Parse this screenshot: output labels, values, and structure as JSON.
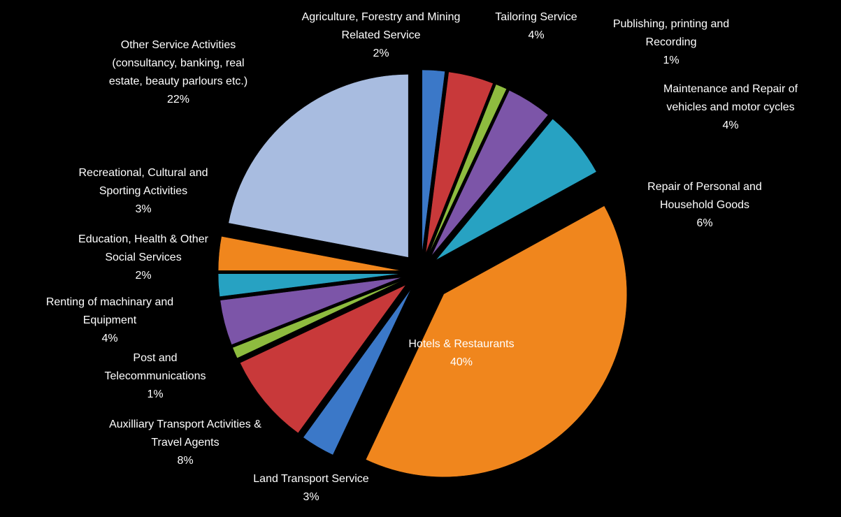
{
  "chart_data": {
    "type": "pie",
    "categories": [
      "Agriculture,  Forestry and Mining Related Service",
      "Tailoring Service",
      "Publishing, printing and Recording",
      "Maintenance and Repair of vehicles and motor cycles",
      "Repair of Personal and Household Goods",
      "Hotels & Restaurants",
      "Land Transport Service",
      "Auxilliary Transport Activities & Travel Agents",
      "Post and Telecommunications",
      "Renting of machinary and Equipment",
      "Education, Health & Other Social Services",
      "Recreational, Cultural and Sporting Activities",
      "Other Service Activities (consultancy, banking, real estate, beauty parlours etc.)"
    ],
    "values": [
      2,
      4,
      1,
      4,
      6,
      40,
      3,
      8,
      1,
      4,
      2,
      3,
      22
    ],
    "value_labels": [
      "2%",
      "4%",
      "1%",
      "4%",
      "6%",
      "40%",
      "3%",
      "8%",
      "1%",
      "4%",
      "2%",
      "3%",
      "22%"
    ],
    "colors": [
      "#3b78c8",
      "#c8393a",
      "#8ebc3f",
      "#7c55a8",
      "#27a2c2",
      "#f0861d",
      "#3b78c8",
      "#c8393a",
      "#8ebc3f",
      "#7c55a8",
      "#27a2c2",
      "#f0861d",
      "#a8bce0"
    ]
  }
}
